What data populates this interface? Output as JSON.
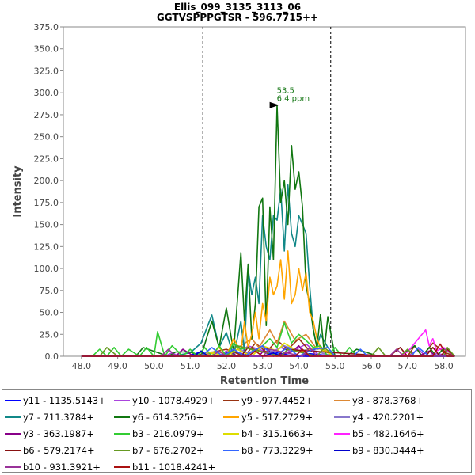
{
  "chart_data": {
    "type": "line",
    "title": "Ellis_099_3135_3113_06",
    "subtitle": "GGTVSPPPGTSR - 596.7715++",
    "xlabel": "Retention Time",
    "ylabel": "Intensity",
    "xlim": [
      47.5,
      58.6
    ],
    "ylim": [
      0,
      375
    ],
    "xticks": [
      "48.0",
      "49.0",
      "50.0",
      "51.0",
      "52.0",
      "53.0",
      "54.0",
      "55.0",
      "56.0",
      "57.0",
      "58.0"
    ],
    "yticks": [
      "0.0",
      "25.0",
      "50.0",
      "75.0",
      "100.0",
      "125.0",
      "150.0",
      "175.0",
      "200.0",
      "225.0",
      "250.0",
      "275.0",
      "300.0",
      "325.0",
      "350.0",
      "375.0"
    ],
    "integration_bounds": [
      51.35,
      54.88
    ],
    "annotation": {
      "x": 53.5,
      "y": 286,
      "label1": "53.5",
      "label2": "6.4 ppm"
    },
    "legend_position": "bottom",
    "series": [
      {
        "name": "y11 - 1135.5143+",
        "color": "#0000ff",
        "x": [
          48.0,
          50.9,
          51.3,
          51.5,
          51.7,
          52.2,
          52.6,
          53.0,
          53.4,
          53.9,
          54.3,
          55.0,
          55.5,
          58.3
        ],
        "y": [
          0,
          0,
          5,
          0,
          0,
          6,
          0,
          0,
          4,
          0,
          3,
          0,
          0,
          0
        ]
      },
      {
        "name": "y10 - 1078.4929+",
        "color": "#aa44dd",
        "x": [
          48.0,
          50.3,
          50.5,
          50.7,
          51.8,
          52.0,
          52.3,
          52.6,
          53.2,
          53.5,
          53.8,
          54.2,
          54.6,
          55.2,
          57.0,
          57.3,
          57.5,
          57.8,
          58.3
        ],
        "y": [
          0,
          0,
          4,
          0,
          0,
          6,
          0,
          12,
          4,
          10,
          5,
          14,
          0,
          0,
          0,
          8,
          0,
          3,
          0
        ]
      },
      {
        "name": "y9 - 977.4452+",
        "color": "#993311",
        "x": [
          48.0,
          51.0,
          51.4,
          52.0,
          52.5,
          52.8,
          53.1,
          53.4,
          53.7,
          54.0,
          54.3,
          54.6,
          55.0,
          57.0,
          57.2,
          57.4,
          57.7,
          58.0,
          58.3
        ],
        "y": [
          0,
          0,
          3,
          8,
          0,
          15,
          5,
          18,
          8,
          20,
          6,
          10,
          0,
          0,
          12,
          0,
          15,
          5,
          0
        ]
      },
      {
        "name": "y8 - 878.3768+",
        "color": "#dd8833",
        "x": [
          48.0,
          51.2,
          51.8,
          52.1,
          52.4,
          52.7,
          52.9,
          53.2,
          53.4,
          53.6,
          53.9,
          54.2,
          54.5,
          54.8,
          55.0,
          58.3
        ],
        "y": [
          0,
          0,
          5,
          0,
          12,
          20,
          10,
          30,
          15,
          40,
          18,
          25,
          8,
          10,
          0,
          0
        ]
      },
      {
        "name": "y7 - 711.3784+",
        "color": "#118888",
        "x": [
          48.0,
          50.5,
          51.0,
          51.3,
          51.6,
          51.8,
          52.0,
          52.2,
          52.4,
          52.5,
          52.6,
          52.7,
          52.8,
          52.9,
          53.0,
          53.1,
          53.2,
          53.3,
          53.4,
          53.5,
          53.6,
          53.7,
          53.8,
          53.9,
          54.0,
          54.1,
          54.2,
          54.3,
          54.4,
          54.5,
          54.6,
          54.8,
          55.0,
          55.3,
          58.3
        ],
        "y": [
          0,
          0,
          4,
          15,
          47,
          10,
          27,
          0,
          40,
          5,
          100,
          70,
          90,
          60,
          160,
          125,
          110,
          160,
          155,
          190,
          120,
          195,
          140,
          125,
          160,
          150,
          140,
          80,
          30,
          10,
          25,
          10,
          0,
          0,
          0
        ]
      },
      {
        "name": "y6 - 614.3256+",
        "color": "#117711",
        "x": [
          48.0,
          49.5,
          49.7,
          50.4,
          50.6,
          51.0,
          51.3,
          51.6,
          51.8,
          52.0,
          52.2,
          52.4,
          52.5,
          52.6,
          52.7,
          52.8,
          52.9,
          53.0,
          53.1,
          53.2,
          53.3,
          53.4,
          53.5,
          53.6,
          53.7,
          53.8,
          53.9,
          54.0,
          54.1,
          54.2,
          54.3,
          54.4,
          54.5,
          54.6,
          54.7,
          54.8,
          55.0,
          55.3,
          55.6,
          56.2,
          56.8,
          57.2,
          57.4,
          57.6,
          57.8,
          58.0,
          58.3
        ],
        "y": [
          0,
          0,
          10,
          0,
          5,
          5,
          0,
          40,
          10,
          55,
          5,
          118,
          40,
          105,
          20,
          60,
          170,
          180,
          35,
          170,
          110,
          286,
          175,
          200,
          150,
          240,
          190,
          210,
          170,
          80,
          60,
          30,
          10,
          48,
          5,
          45,
          0,
          0,
          8,
          0,
          0,
          12,
          0,
          10,
          0,
          9,
          0
        ]
      },
      {
        "name": "y5 - 517.2729+",
        "color": "#ffa500",
        "x": [
          48.0,
          51.5,
          51.8,
          52.0,
          52.2,
          52.4,
          52.5,
          52.6,
          52.7,
          52.8,
          52.9,
          53.0,
          53.1,
          53.2,
          53.3,
          53.4,
          53.5,
          53.6,
          53.7,
          53.8,
          53.9,
          54.0,
          54.1,
          54.2,
          54.3,
          54.4,
          54.5,
          54.6,
          54.8,
          55.0,
          58.3
        ],
        "y": [
          0,
          0,
          10,
          0,
          20,
          5,
          40,
          10,
          25,
          50,
          20,
          60,
          40,
          90,
          70,
          80,
          110,
          65,
          120,
          60,
          70,
          100,
          75,
          95,
          50,
          40,
          20,
          10,
          5,
          0,
          0
        ]
      },
      {
        "name": "y4 - 420.2201+",
        "color": "#8877cc",
        "x": [
          48.0,
          51.2,
          51.6,
          52.0,
          52.3,
          52.6,
          53.0,
          53.3,
          53.6,
          54.0,
          54.3,
          54.7,
          55.0,
          58.3
        ],
        "y": [
          0,
          0,
          5,
          0,
          8,
          4,
          10,
          5,
          12,
          6,
          8,
          3,
          0,
          0
        ]
      },
      {
        "name": "y3 - 363.1987+",
        "color": "#880088",
        "x": [
          48.0,
          50.6,
          50.8,
          51.1,
          51.9,
          52.1,
          52.3,
          52.9,
          53.1,
          53.3,
          53.8,
          54.0,
          54.2,
          55.0,
          57.3,
          57.6,
          57.8,
          58.3
        ],
        "y": [
          0,
          0,
          8,
          0,
          0,
          6,
          0,
          0,
          10,
          0,
          5,
          12,
          0,
          0,
          0,
          6,
          0,
          0
        ]
      },
      {
        "name": "b3 - 216.0979+",
        "color": "#33cc33",
        "x": [
          48.0,
          48.3,
          48.5,
          48.7,
          48.9,
          49.1,
          49.3,
          49.6,
          49.8,
          50.0,
          50.1,
          50.3,
          50.5,
          50.8,
          51.0,
          51.2,
          51.4,
          51.6,
          51.8,
          52.0,
          52.2,
          52.4,
          52.6,
          52.8,
          53.0,
          53.2,
          53.4,
          53.6,
          53.8,
          54.0,
          54.2,
          54.4,
          54.6,
          54.8,
          55.0,
          55.2,
          55.4,
          55.6,
          55.8,
          58.3
        ],
        "y": [
          0,
          0,
          8,
          0,
          10,
          0,
          8,
          0,
          10,
          0,
          28,
          0,
          12,
          0,
          8,
          0,
          10,
          0,
          12,
          0,
          15,
          8,
          10,
          5,
          12,
          20,
          10,
          38,
          15,
          25,
          18,
          10,
          12,
          0,
          10,
          0,
          10,
          0,
          0,
          0
        ]
      },
      {
        "name": "b4 - 315.1663+",
        "color": "#dddd00",
        "x": [
          48.0,
          51.3,
          51.5,
          52.0,
          52.3,
          52.7,
          53.0,
          53.4,
          53.6,
          54.0,
          54.5,
          55.0,
          58.3
        ],
        "y": [
          0,
          0,
          5,
          0,
          8,
          0,
          12,
          6,
          15,
          5,
          10,
          0,
          0
        ]
      },
      {
        "name": "b5 - 482.1646+",
        "color": "#ff22ff",
        "x": [
          48.0,
          56.8,
          57.0,
          57.2,
          57.4,
          57.5,
          57.6,
          57.7,
          57.8,
          58.0,
          58.3
        ],
        "y": [
          0,
          0,
          5,
          15,
          25,
          30,
          12,
          20,
          6,
          10,
          0
        ]
      },
      {
        "name": "b6 - 579.2174+",
        "color": "#881111",
        "x": [
          48.0,
          52.4,
          52.6,
          53.4,
          53.6,
          56.5,
          56.8,
          57.0,
          57.5,
          57.7,
          57.9,
          58.1,
          58.3
        ],
        "y": [
          0,
          0,
          10,
          0,
          8,
          0,
          10,
          0,
          0,
          10,
          0,
          8,
          0
        ]
      },
      {
        "name": "b7 - 676.2702+",
        "color": "#669922",
        "x": [
          48.0,
          48.5,
          48.7,
          49.0,
          52.0,
          52.3,
          53.5,
          53.7,
          54.5,
          54.7,
          55.0,
          56.0,
          56.2,
          56.4,
          56.8,
          57.0,
          57.2,
          58.0,
          58.1,
          58.3
        ],
        "y": [
          0,
          0,
          10,
          0,
          0,
          12,
          0,
          8,
          0,
          10,
          0,
          0,
          10,
          0,
          0,
          8,
          0,
          0,
          10,
          0
        ]
      },
      {
        "name": "b8 - 773.3229+",
        "color": "#3366ff",
        "x": [
          48.0,
          51.3,
          51.6,
          51.9,
          52.2,
          52.5,
          53.0,
          53.3,
          53.7,
          54.0,
          54.4,
          54.8,
          55.0,
          55.5,
          55.7,
          55.9,
          56.2,
          57.1,
          57.3,
          57.6,
          58.3
        ],
        "y": [
          0,
          0,
          10,
          0,
          8,
          0,
          12,
          0,
          10,
          0,
          8,
          10,
          0,
          0,
          8,
          0,
          0,
          0,
          10,
          0,
          0
        ]
      },
      {
        "name": "b9 - 830.3444+",
        "color": "#0000cc",
        "x": [
          48.0,
          51.1,
          51.3,
          51.5,
          53.0,
          53.3,
          53.5,
          58.3
        ],
        "y": [
          0,
          0,
          6,
          0,
          0,
          4,
          0,
          0
        ]
      },
      {
        "name": "b10 - 931.3921+",
        "color": "#993399",
        "x": [
          48.0,
          50.2,
          50.4,
          50.6,
          51.6,
          51.8,
          52.0,
          53.0,
          53.2,
          54.1,
          54.3,
          54.5,
          56.5,
          56.7,
          56.9,
          58.3
        ],
        "y": [
          0,
          0,
          8,
          0,
          0,
          6,
          0,
          0,
          8,
          0,
          10,
          0,
          0,
          8,
          0,
          0
        ]
      },
      {
        "name": "b11 - 1018.4241+",
        "color": "#aa1111",
        "x": [
          48.0,
          52.6,
          52.8,
          53.0,
          53.9,
          54.1,
          54.3,
          57.7,
          57.9,
          58.1,
          58.3
        ],
        "y": [
          0,
          0,
          6,
          0,
          0,
          8,
          0,
          0,
          14,
          0,
          0
        ]
      }
    ]
  }
}
